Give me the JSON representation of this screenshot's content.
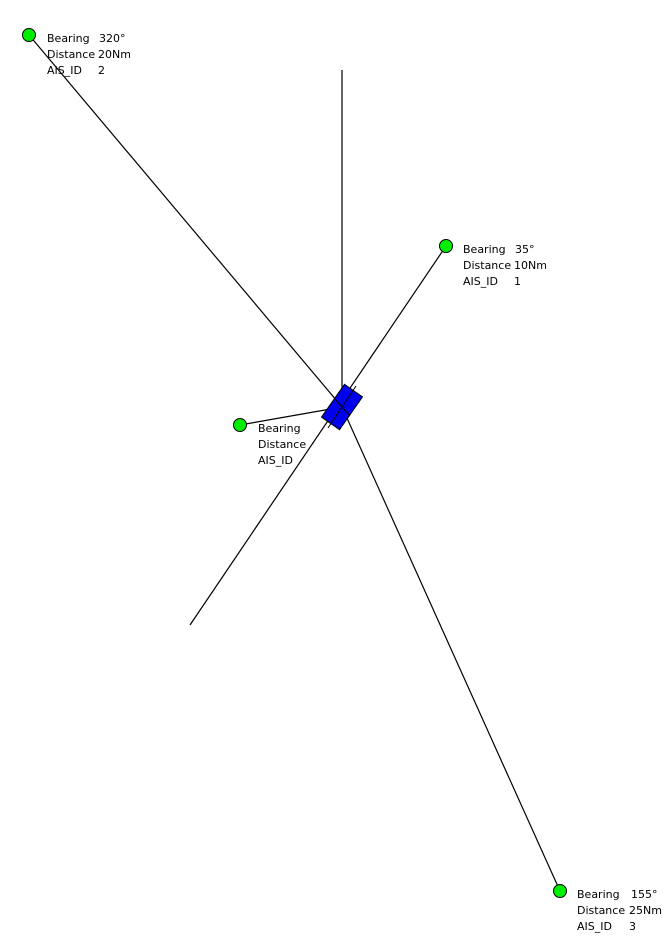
{
  "colors": {
    "background": "#ffffff",
    "line": "#000000",
    "target_fill": "#00ee00",
    "vessel_fill": "#0000ee"
  },
  "own_ship": {
    "icon": "vessel-rectangle-icon",
    "heading_marker": "heading-line"
  },
  "targets": [
    {
      "id": "2",
      "icon": "ais-target-dot-icon",
      "bearing_label": "Bearing",
      "bearing_value": "320°",
      "distance_label": "Distance",
      "distance_value": "20Nm",
      "ais_label": "AIS_ID",
      "ais_value": "2"
    },
    {
      "id": "1",
      "icon": "ais-target-dot-icon",
      "bearing_label": "Bearing",
      "bearing_value": "35°",
      "distance_label": "Distance",
      "distance_value": "10Nm",
      "ais_label": "AIS_ID",
      "ais_value": "1"
    },
    {
      "id": "unknown",
      "icon": "ais-target-dot-icon",
      "bearing_label": "Bearing",
      "bearing_value": "",
      "distance_label": "Distance",
      "distance_value": "",
      "ais_label": "AIS_ID",
      "ais_value": ""
    },
    {
      "id": "3",
      "icon": "ais-target-dot-icon",
      "bearing_label": "Bearing",
      "bearing_value": "155°",
      "distance_label": "Distance",
      "distance_value": "25Nm",
      "ais_label": "AIS_ID",
      "ais_value": "3"
    }
  ]
}
